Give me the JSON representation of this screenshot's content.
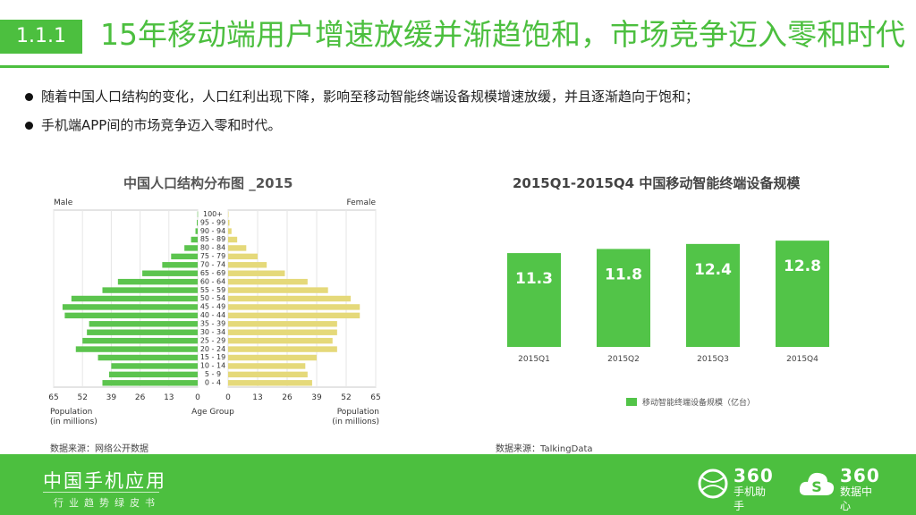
{
  "header": {
    "section_number": "1.1.1",
    "title": "15年移动端用户增速放缓并渐趋饱和，市场竞争迈入零和时代"
  },
  "bullets": [
    "随着中国人口结构的变化，人口红利出现下降，影响至移动智能终端设备规模增速放缓，并且逐渐趋向于饱和；",
    "手机端APP间的市场竞争迈入零和时代。"
  ],
  "colors": {
    "accent": "#4cbf3f",
    "male_bar": "#5cc44e",
    "female_bar": "#e5d97a",
    "bar_green": "#52c448"
  },
  "chart_data": [
    {
      "type": "bar",
      "orientation": "horizontal-pyramid",
      "title": "中国人口结构分布图 _2015",
      "left_label": "Male",
      "right_label": "Female",
      "center_axis_label": "Age Group",
      "left_axis_label_line1": "Population",
      "left_axis_label_line2": "(in millions)",
      "right_axis_label_line1": "Population",
      "right_axis_label_line2": "(in millions)",
      "categories": [
        "0 - 4",
        "5 - 9",
        "10 - 14",
        "15 - 19",
        "20 - 24",
        "25 - 29",
        "30 - 34",
        "35 - 39",
        "40 - 44",
        "45 - 49",
        "50 - 54",
        "55 - 59",
        "60 - 64",
        "65 - 69",
        "70 - 74",
        "75 - 79",
        "80 - 84",
        "85 - 89",
        "90 - 94",
        "95 - 99",
        "100+"
      ],
      "x_ticks_left": [
        "65",
        "52",
        "39",
        "26",
        "13",
        "0"
      ],
      "x_ticks_right": [
        "0",
        "13",
        "26",
        "39",
        "52",
        "65"
      ],
      "xlim": [
        0,
        65
      ],
      "series": [
        {
          "name": "Male",
          "values": [
            43,
            40,
            39,
            45,
            55,
            52,
            50,
            49,
            60,
            61,
            57,
            43,
            36,
            25,
            16,
            12,
            6,
            3,
            1,
            0.4,
            0.1
          ]
        },
        {
          "name": "Female",
          "values": [
            37,
            35,
            34,
            39,
            48,
            46,
            48,
            48,
            58,
            58,
            54,
            44,
            35,
            25,
            17,
            13,
            8,
            4,
            1.5,
            0.6,
            0.2
          ]
        }
      ],
      "source": "数据来源：网络公开数据"
    },
    {
      "type": "bar",
      "title": "2015Q1-2015Q4 中国移动智能终端设备规模",
      "categories": [
        "2015Q1",
        "2015Q2",
        "2015Q3",
        "2015Q4"
      ],
      "values": [
        11.3,
        11.8,
        12.4,
        12.8
      ],
      "value_labels": [
        "11.3",
        "11.8",
        "12.4",
        "12.8"
      ],
      "legend": "移动智能终端设备规模（亿台）",
      "legend_position": "bottom",
      "ylim": [
        0,
        14
      ],
      "source": "数据来源：TalkingData"
    }
  ],
  "footer": {
    "brand_cn": "中国手机应用",
    "brand_sub": "行业趋势绿皮书",
    "logo1_num": "360",
    "logo1_label": "手机助手",
    "logo2_num": "360",
    "logo2_label": "数据中心"
  }
}
